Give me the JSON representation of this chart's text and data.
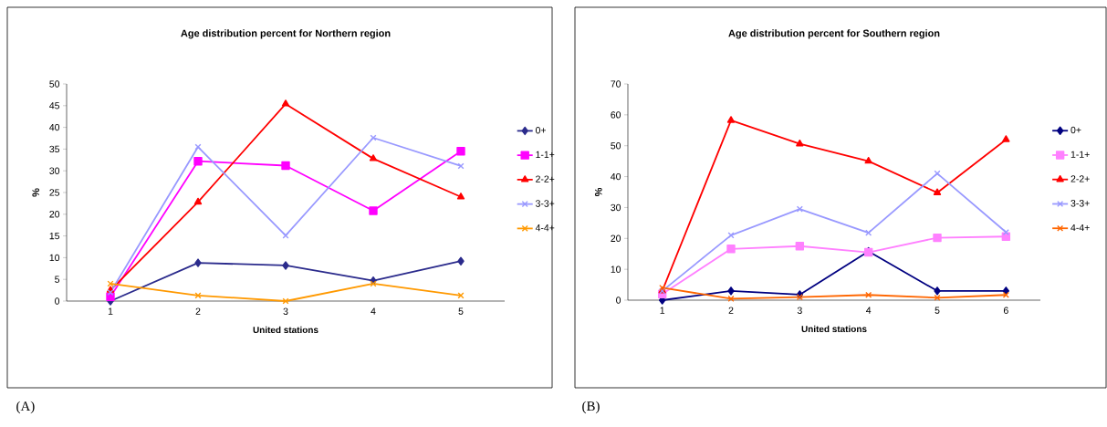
{
  "chart_data": [
    {
      "type": "line",
      "title": "Age distribution  percent for Northern region",
      "xlabel": "United stations",
      "ylabel": "%",
      "categories": [
        "1",
        "2",
        "3",
        "4",
        "5"
      ],
      "ylim": [
        0,
        50
      ],
      "yticks": [
        0,
        5,
        10,
        15,
        20,
        25,
        30,
        35,
        40,
        45,
        50
      ],
      "legend": "right",
      "annotations": [
        "(A)"
      ],
      "series": [
        {
          "name": "0+",
          "color": "#2b2b8c",
          "marker": "diamond",
          "values": [
            0,
            8.8,
            8.2,
            4.7,
            9.2
          ]
        },
        {
          "name": "1-1+",
          "color": "#ff00ff",
          "marker": "square",
          "values": [
            1,
            32.2,
            31.2,
            20.8,
            34.5
          ]
        },
        {
          "name": "2-2+",
          "color": "#ff0000",
          "marker": "triangle",
          "values": [
            2.5,
            22.8,
            45.4,
            32.8,
            24
          ]
        },
        {
          "name": "3-3+",
          "color": "#9999ff",
          "marker": "cross",
          "values": [
            2,
            35.5,
            15.1,
            37.6,
            31.1
          ]
        },
        {
          "name": "4-4+",
          "color": "#ff9900",
          "marker": "cross",
          "values": [
            4,
            1.3,
            0,
            4,
            1.3
          ]
        }
      ]
    },
    {
      "type": "line",
      "title": "Age distribution percent for Southern region",
      "xlabel": "United stations",
      "ylabel": "%",
      "categories": [
        "1",
        "2",
        "3",
        "4",
        "5",
        "6"
      ],
      "ylim": [
        0,
        70
      ],
      "yticks": [
        0,
        10,
        20,
        30,
        40,
        50,
        60,
        70
      ],
      "legend": "right",
      "annotations": [
        "(B)"
      ],
      "series": [
        {
          "name": "0+",
          "color": "#000080",
          "marker": "diamond",
          "values": [
            0,
            3,
            1.8,
            15.8,
            3,
            3
          ]
        },
        {
          "name": "1-1+",
          "color": "#ff80ff",
          "marker": "square",
          "values": [
            2,
            16.6,
            17.5,
            15.5,
            20.2,
            20.6
          ]
        },
        {
          "name": "2-2+",
          "color": "#ff0000",
          "marker": "triangle",
          "values": [
            3,
            58.2,
            50.6,
            45,
            34.8,
            52
          ]
        },
        {
          "name": "3-3+",
          "color": "#9999ff",
          "marker": "cross",
          "values": [
            3,
            21,
            29.5,
            21.8,
            41,
            22
          ]
        },
        {
          "name": "4-4+",
          "color": "#ff6600",
          "marker": "cross",
          "values": [
            4,
            0.5,
            1,
            1.7,
            0.8,
            1.7
          ]
        }
      ]
    }
  ]
}
